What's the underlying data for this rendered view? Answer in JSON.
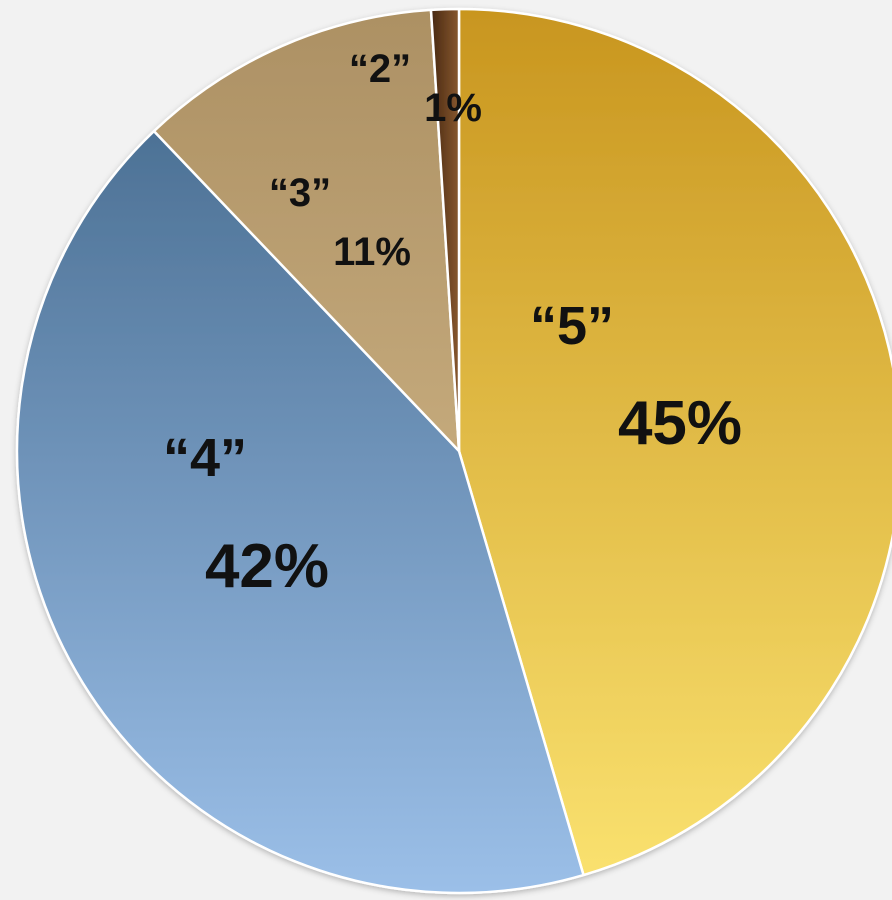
{
  "chart_data": {
    "type": "pie",
    "title": "",
    "slices": [
      {
        "category": "“5”",
        "value": 45,
        "value_label": "45%",
        "color_light": "#fbe371",
        "color_dark": "#c8951e"
      },
      {
        "category": "“4”",
        "value": 42,
        "value_label": "42%",
        "color_light": "#9cc0e9",
        "color_dark": "#3f6487"
      },
      {
        "category": "“3”",
        "value": 11,
        "value_label": "11%",
        "color_light": "#dcc293",
        "color_dark": "#ac9063"
      },
      {
        "category": "“2”",
        "value": 1,
        "value_label": "1%",
        "color_light": "#8a5a30",
        "color_dark": "#4a2a12"
      }
    ],
    "start_angle_deg": 0,
    "direction": "clockwise",
    "legend": "none",
    "background": "#f2f2f2"
  }
}
